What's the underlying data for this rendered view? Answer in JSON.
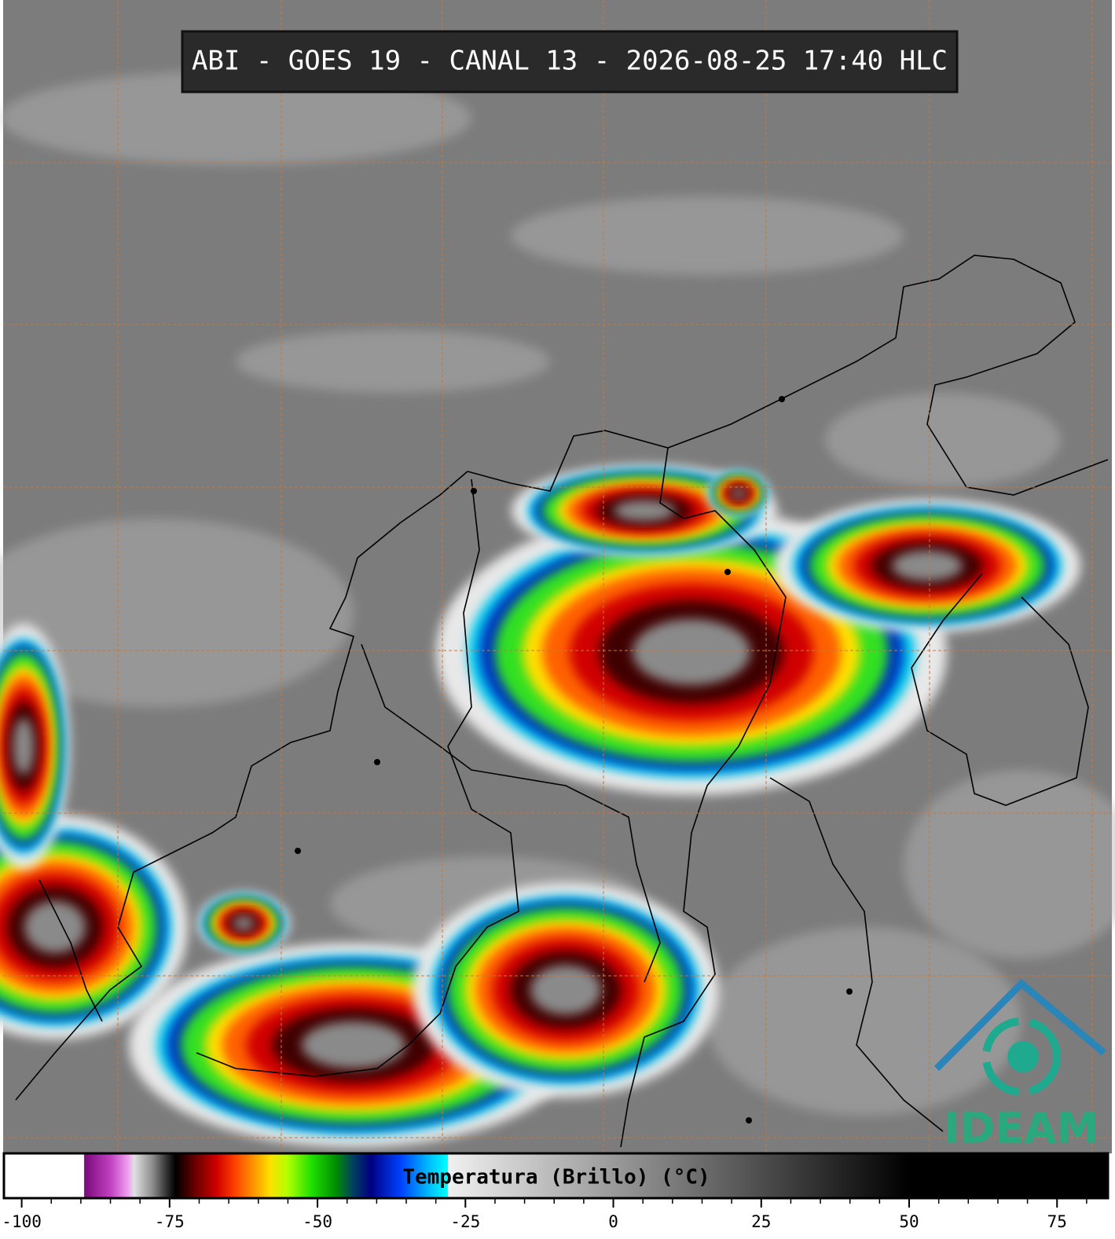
{
  "header": {
    "title": "ABI - GOES 19 - CANAL 13 - 2026-08-25 17:40 HLC"
  },
  "colorbar": {
    "label": "Temperatura (Brillo) (°C)",
    "lim": [
      -103,
      83.6
    ],
    "ticks": [
      -100,
      -75,
      -50,
      -25,
      0,
      25,
      50,
      75
    ],
    "minor_ticks": [
      -95,
      -90,
      -85,
      -80,
      -70,
      -65,
      -60,
      -55,
      -45,
      -40,
      -35,
      -30,
      -20,
      -15,
      -10,
      -5,
      5,
      10,
      15,
      20,
      30,
      35,
      40,
      45,
      55,
      60,
      65,
      70,
      80
    ],
    "colormap": [
      [
        -103,
        "#ffffff"
      ],
      [
        -89.5,
        "#ffffff"
      ],
      [
        -89.4,
        "#7a0a7a"
      ],
      [
        -85,
        "#c040c0"
      ],
      [
        -82,
        "#f0a0f0"
      ],
      [
        -81,
        "#e0e0e0"
      ],
      [
        -78,
        "#909090"
      ],
      [
        -75,
        "#202020"
      ],
      [
        -74,
        "#000000"
      ],
      [
        -71,
        "#600000"
      ],
      [
        -67,
        "#d00000"
      ],
      [
        -64,
        "#ff4000"
      ],
      [
        -61,
        "#ff9000"
      ],
      [
        -58,
        "#ffe000"
      ],
      [
        -55,
        "#b0ff00"
      ],
      [
        -51,
        "#20e000"
      ],
      [
        -47,
        "#009000"
      ],
      [
        -44,
        "#004060"
      ],
      [
        -41,
        "#000080"
      ],
      [
        -36,
        "#0040ff"
      ],
      [
        -31,
        "#00c0ff"
      ],
      [
        -28,
        "#00ffff"
      ],
      [
        -27.9,
        "#f0f0f0"
      ],
      [
        50,
        "#000000"
      ],
      [
        83.6,
        "#000000"
      ]
    ]
  },
  "logo": {
    "text": "IDEAM"
  }
}
